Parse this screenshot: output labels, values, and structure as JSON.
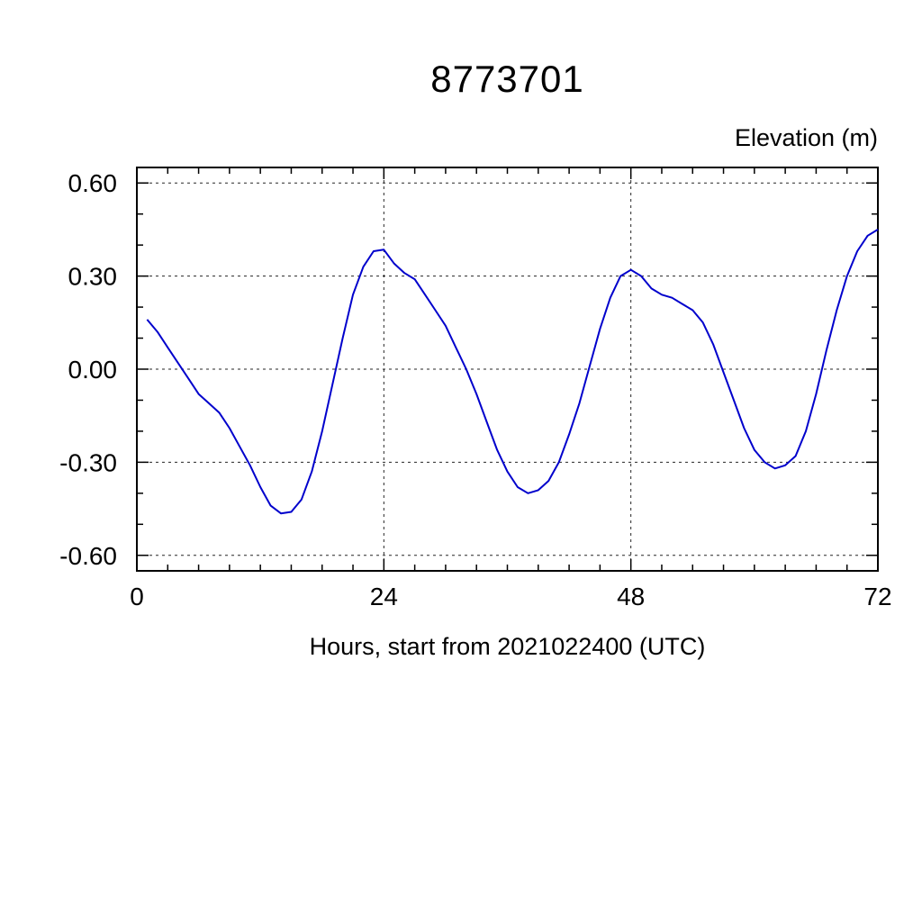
{
  "title": "8773701",
  "ylabel": "Elevation (m)",
  "xlabel": "Hours, start from 2021022400 (UTC)",
  "chart_data": {
    "type": "line",
    "title": "8773701",
    "xlabel": "Hours, start from 2021022400 (UTC)",
    "ylabel": "Elevation (m)",
    "xlim": [
      0,
      72
    ],
    "ylim": [
      -0.65,
      0.65
    ],
    "xticks": [
      0,
      24,
      48,
      72
    ],
    "xtick_labels": [
      "0",
      "24",
      "48",
      "72"
    ],
    "yticks": [
      -0.6,
      -0.3,
      0.0,
      0.3,
      0.6
    ],
    "ytick_labels": [
      "-0.60",
      "-0.30",
      "0.00",
      "0.30",
      "0.60"
    ],
    "x_gridlines": [
      24,
      48
    ],
    "y_gridlines": [
      -0.6,
      -0.3,
      0.0,
      0.3,
      0.6
    ],
    "x_minor_step": 3,
    "y_minor_step": 0.1,
    "grid": true,
    "legend": false,
    "line_color": "#0000cc",
    "series": [
      {
        "name": "elevation",
        "x": [
          1,
          2,
          3,
          4,
          5,
          6,
          7,
          8,
          9,
          10,
          11,
          12,
          13,
          14,
          15,
          16,
          17,
          18,
          19,
          20,
          21,
          22,
          23,
          24,
          25,
          26,
          27,
          28,
          29,
          30,
          31,
          32,
          33,
          34,
          35,
          36,
          37,
          38,
          39,
          40,
          41,
          42,
          43,
          44,
          45,
          46,
          47,
          48,
          49,
          50,
          51,
          52,
          53,
          54,
          55,
          56,
          57,
          58,
          59,
          60,
          61,
          62,
          63,
          64,
          65,
          66,
          67,
          68,
          69,
          70,
          71,
          72
        ],
        "y": [
          0.16,
          0.12,
          0.07,
          0.02,
          -0.03,
          -0.08,
          -0.11,
          -0.14,
          -0.19,
          -0.25,
          -0.31,
          -0.38,
          -0.44,
          -0.465,
          -0.46,
          -0.42,
          -0.33,
          -0.2,
          -0.05,
          0.1,
          0.24,
          0.33,
          0.38,
          0.385,
          0.34,
          0.31,
          0.29,
          0.24,
          0.19,
          0.14,
          0.07,
          0.0,
          -0.08,
          -0.17,
          -0.26,
          -0.33,
          -0.38,
          -0.4,
          -0.39,
          -0.36,
          -0.3,
          -0.21,
          -0.11,
          0.01,
          0.13,
          0.23,
          0.3,
          0.32,
          0.3,
          0.26,
          0.24,
          0.23,
          0.21,
          0.19,
          0.15,
          0.08,
          -0.01,
          -0.1,
          -0.19,
          -0.26,
          -0.3,
          -0.32,
          -0.31,
          -0.28,
          -0.2,
          -0.08,
          0.06,
          0.19,
          0.3,
          0.38,
          0.43,
          0.45
        ]
      }
    ]
  }
}
